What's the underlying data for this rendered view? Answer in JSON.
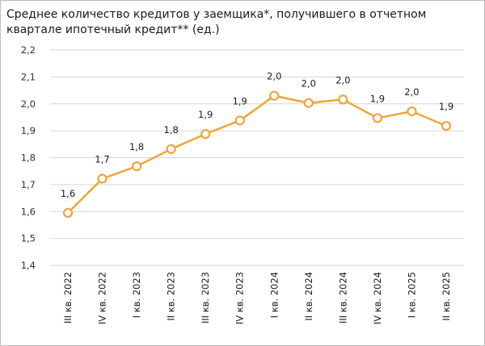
{
  "chart_data": {
    "type": "line",
    "title": "Среднее количество кредитов у заемщика*, получившего в отчетном квартале ипотечный кредит** (ед.)",
    "xlabel": "",
    "ylabel": "",
    "ylim": [
      1.4,
      2.2
    ],
    "yticks": [
      1.4,
      1.5,
      1.6,
      1.7,
      1.8,
      1.9,
      2.0,
      2.1,
      2.2
    ],
    "ytick_labels": [
      "1,4",
      "1,5",
      "1,6",
      "1,7",
      "1,8",
      "1,9",
      "2,0",
      "2,1",
      "2,2"
    ],
    "grid": true,
    "categories": [
      "III кв. 2022",
      "IV кв. 2022",
      "I кв. 2023",
      "II кв. 2023",
      "III кв. 2023",
      "IV кв. 2023",
      "I кв. 2024",
      "II кв. 2024",
      "III кв. 2024",
      "IV кв. 2024",
      "I кв. 2025",
      "II кв. 2025"
    ],
    "series": [
      {
        "name": "Среднее количество кредитов",
        "color": "#f0a43a",
        "values": [
          1.595,
          1.722,
          1.768,
          1.832,
          1.888,
          1.938,
          2.03,
          2.003,
          2.016,
          1.947,
          1.972,
          1.918
        ],
        "labels": [
          "1,6",
          "1,7",
          "1,8",
          "1,8",
          "1,9",
          "1,9",
          "2,0",
          "2,0",
          "2,0",
          "1,9",
          "2,0",
          "1,9"
        ]
      }
    ]
  }
}
